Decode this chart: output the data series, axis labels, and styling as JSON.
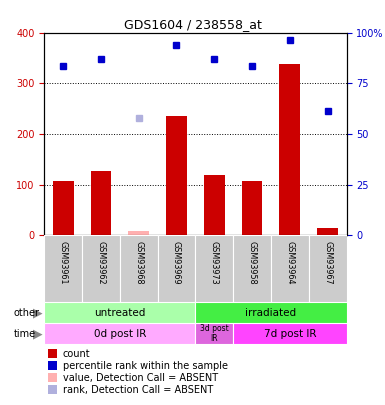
{
  "title": "GDS1604 / 238558_at",
  "samples": [
    "GSM93961",
    "GSM93962",
    "GSM93968",
    "GSM93969",
    "GSM93973",
    "GSM93958",
    "GSM93964",
    "GSM93967"
  ],
  "counts": [
    107,
    128,
    null,
    235,
    120,
    107,
    338,
    15
  ],
  "counts_absent": [
    null,
    null,
    8,
    null,
    null,
    null,
    null,
    null
  ],
  "ranks": [
    335,
    348,
    null,
    375,
    348,
    335,
    385,
    245
  ],
  "ranks_absent": [
    null,
    null,
    232,
    null,
    null,
    null,
    null,
    null
  ],
  "left_ylim": [
    0,
    400
  ],
  "left_yticks": [
    0,
    100,
    200,
    300,
    400
  ],
  "right_yticks": [
    0,
    25,
    50,
    75,
    100
  ],
  "right_yticklabels": [
    "0",
    "25",
    "50",
    "75",
    "100%"
  ],
  "bar_color": "#cc0000",
  "bar_absent_color": "#ffb0b0",
  "rank_color": "#0000cc",
  "rank_absent_color": "#b0b0dd",
  "group_other": [
    {
      "label": "untreated",
      "start": 0,
      "end": 4,
      "color": "#aaffaa"
    },
    {
      "label": "irradiated",
      "start": 4,
      "end": 8,
      "color": "#44ee44"
    }
  ],
  "group_time": [
    {
      "label": "0d post IR",
      "start": 0,
      "end": 4,
      "color": "#ffaaff"
    },
    {
      "label": "3d post\nIR",
      "start": 4,
      "end": 5,
      "color": "#dd66dd"
    },
    {
      "label": "7d post IR",
      "start": 5,
      "end": 8,
      "color": "#ff44ff"
    }
  ],
  "legend_items": [
    {
      "label": "count",
      "color": "#cc0000"
    },
    {
      "label": "percentile rank within the sample",
      "color": "#0000cc"
    },
    {
      "label": "value, Detection Call = ABSENT",
      "color": "#ffb0b0"
    },
    {
      "label": "rank, Detection Call = ABSENT",
      "color": "#b0b0dd"
    }
  ],
  "ylabel_left_color": "#cc0000",
  "ylabel_right_color": "#0000cc",
  "sample_area_color": "#cccccc"
}
